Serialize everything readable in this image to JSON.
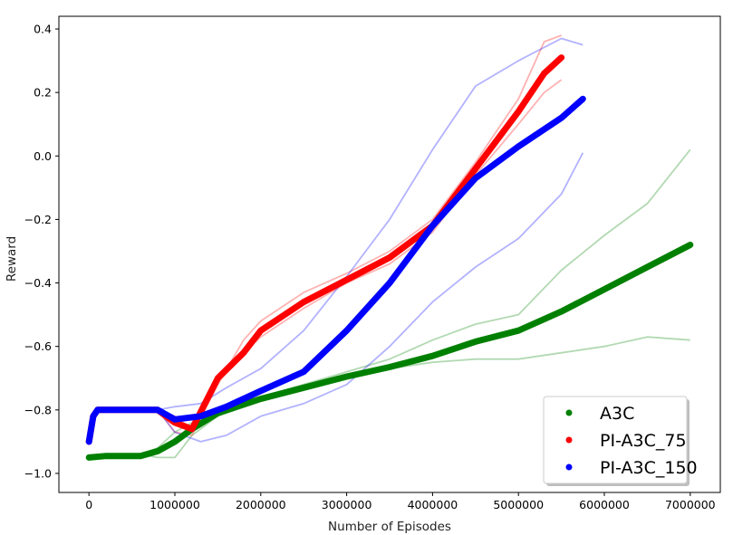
{
  "chart_data": {
    "type": "line",
    "title": "",
    "xlabel": "Number of Episodes",
    "ylabel": "Reward",
    "xlim": [
      -350000,
      7350000
    ],
    "ylim": [
      -1.06,
      0.44
    ],
    "x_ticks": [
      0,
      1000000,
      2000000,
      3000000,
      4000000,
      5000000,
      6000000,
      7000000
    ],
    "x_tick_labels": [
      "0",
      "1000000",
      "2000000",
      "3000000",
      "4000000",
      "5000000",
      "6000000",
      "7000000"
    ],
    "y_ticks": [
      -1.0,
      -0.8,
      -0.6,
      -0.4,
      -0.2,
      0.0,
      0.2,
      0.4
    ],
    "y_tick_labels": [
      "−1.0",
      "−0.8",
      "−0.6",
      "−0.4",
      "−0.2",
      "0.0",
      "0.2",
      "0.4"
    ],
    "grid": false,
    "legend_position": "bottom-right",
    "series": [
      {
        "name": "A3C",
        "color": "#008000",
        "runs": [
          {
            "x": [
              0,
              200000,
              400000,
              600000,
              800000,
              1000000,
              1200000,
              1500000,
              2000000,
              2500000,
              3000000,
              3500000,
              4000000,
              4500000,
              5000000,
              5500000,
              6000000,
              6500000,
              7000000
            ],
            "y": [
              -0.95,
              -0.94,
              -0.94,
              -0.94,
              -0.95,
              -0.95,
              -0.88,
              -0.82,
              -0.77,
              -0.73,
              -0.69,
              -0.67,
              -0.65,
              -0.64,
              -0.64,
              -0.62,
              -0.6,
              -0.57,
              -0.58
            ]
          },
          {
            "x": [
              0,
              200000,
              400000,
              600000,
              800000,
              1000000,
              1200000,
              1500000,
              2000000,
              2500000,
              3000000,
              3500000,
              4000000,
              4500000,
              5000000,
              5500000,
              6000000,
              6500000,
              7000000
            ],
            "y": [
              -0.95,
              -0.94,
              -0.94,
              -0.94,
              -0.92,
              -0.87,
              -0.84,
              -0.8,
              -0.76,
              -0.72,
              -0.68,
              -0.64,
              -0.58,
              -0.53,
              -0.5,
              -0.36,
              -0.25,
              -0.15,
              0.02
            ]
          }
        ],
        "mean": {
          "x": [
            0,
            200000,
            400000,
            600000,
            800000,
            1000000,
            1200000,
            1500000,
            2000000,
            2500000,
            3000000,
            3500000,
            4000000,
            4500000,
            5000000,
            5500000,
            6000000,
            6500000,
            7000000
          ],
          "y": [
            -0.95,
            -0.945,
            -0.945,
            -0.945,
            -0.93,
            -0.9,
            -0.86,
            -0.81,
            -0.765,
            -0.73,
            -0.695,
            -0.665,
            -0.63,
            -0.585,
            -0.55,
            -0.49,
            -0.42,
            -0.35,
            -0.28
          ]
        }
      },
      {
        "name": "PI-A3C_75",
        "color": "#ff0000",
        "runs": [
          {
            "x": [
              0,
              50000,
              100000,
              400000,
              800000,
              1000000,
              1200000,
              1500000,
              1800000,
              2000000,
              2500000,
              3000000,
              3500000,
              4000000,
              4500000,
              5000000,
              5300000,
              5500000
            ],
            "y": [
              -0.9,
              -0.82,
              -0.8,
              -0.8,
              -0.8,
              -0.87,
              -0.88,
              -0.72,
              -0.58,
              -0.52,
              -0.43,
              -0.37,
              -0.3,
              -0.2,
              -0.02,
              0.18,
              0.36,
              0.38
            ]
          },
          {
            "x": [
              0,
              50000,
              100000,
              400000,
              800000,
              1000000,
              1200000,
              1500000,
              1800000,
              2000000,
              2500000,
              3000000,
              3500000,
              4000000,
              4500000,
              5000000,
              5300000,
              5500000
            ],
            "y": [
              -0.9,
              -0.82,
              -0.8,
              -0.8,
              -0.8,
              -0.82,
              -0.86,
              -0.7,
              -0.62,
              -0.57,
              -0.48,
              -0.4,
              -0.34,
              -0.24,
              -0.06,
              0.1,
              0.2,
              0.24
            ]
          }
        ],
        "mean": {
          "x": [
            0,
            50000,
            100000,
            400000,
            800000,
            1000000,
            1200000,
            1500000,
            1800000,
            2000000,
            2500000,
            3000000,
            3500000,
            4000000,
            4500000,
            5000000,
            5300000,
            5500000
          ],
          "y": [
            -0.9,
            -0.82,
            -0.8,
            -0.8,
            -0.8,
            -0.84,
            -0.86,
            -0.7,
            -0.62,
            -0.55,
            -0.46,
            -0.39,
            -0.32,
            -0.22,
            -0.04,
            0.14,
            0.26,
            0.31
          ]
        }
      },
      {
        "name": "PI-A3C_150",
        "color": "#0000ff",
        "runs": [
          {
            "x": [
              0,
              50000,
              100000,
              400000,
              800000,
              1000000,
              1300000,
              1600000,
              2000000,
              2500000,
              3000000,
              3500000,
              4000000,
              4500000,
              5000000,
              5500000,
              5750000
            ],
            "y": [
              -0.9,
              -0.82,
              -0.8,
              -0.8,
              -0.8,
              -0.79,
              -0.78,
              -0.73,
              -0.67,
              -0.55,
              -0.38,
              -0.2,
              0.02,
              0.22,
              0.3,
              0.37,
              0.35
            ]
          },
          {
            "x": [
              0,
              50000,
              100000,
              400000,
              800000,
              1000000,
              1300000,
              1600000,
              2000000,
              2500000,
              3000000,
              3500000,
              4000000,
              4500000,
              5000000,
              5500000,
              5750000
            ],
            "y": [
              -0.9,
              -0.82,
              -0.8,
              -0.8,
              -0.8,
              -0.87,
              -0.9,
              -0.88,
              -0.82,
              -0.78,
              -0.72,
              -0.6,
              -0.46,
              -0.35,
              -0.26,
              -0.12,
              0.01
            ]
          }
        ],
        "mean": {
          "x": [
            0,
            50000,
            100000,
            400000,
            800000,
            1000000,
            1300000,
            1600000,
            2000000,
            2500000,
            3000000,
            3500000,
            4000000,
            4500000,
            5000000,
            5500000,
            5750000
          ],
          "y": [
            -0.9,
            -0.82,
            -0.8,
            -0.8,
            -0.8,
            -0.83,
            -0.82,
            -0.79,
            -0.74,
            -0.68,
            -0.55,
            -0.4,
            -0.22,
            -0.07,
            0.03,
            0.12,
            0.18
          ]
        }
      }
    ]
  }
}
